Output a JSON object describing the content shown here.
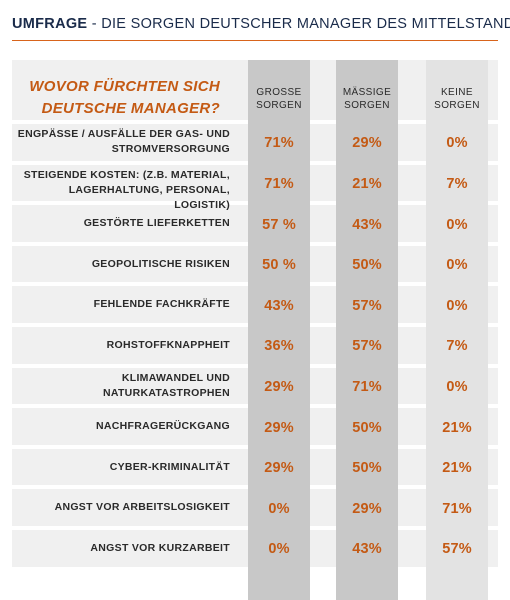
{
  "title": {
    "label": "UMFRAGE",
    "text": " - DIE SORGEN DEUTSCHER MANAGER DES MITTELSTANDS"
  },
  "colors": {
    "accent": "#c45a14",
    "title": "#1a2b4a",
    "band": "#f0f0f0",
    "column_dark": "#c8c8c8",
    "column_light": "#e3e3e3"
  },
  "chart_data": {
    "type": "table",
    "title": "WOVOR FÜRCHTEN SICH DEUTSCHE MANAGER?",
    "columns": [
      {
        "line1": "GROSSE",
        "line2": "SORGEN"
      },
      {
        "line1": "MÄSSIGE",
        "line2": "SORGEN"
      },
      {
        "line1": "KEINE",
        "line2": "SORGEN"
      }
    ],
    "rows": [
      {
        "label": [
          "ENGPÄSSE / AUSFÄLLE DER GAS- UND",
          "STROMVERSORGUNG"
        ],
        "values": [
          "71%",
          "29%",
          "0%"
        ]
      },
      {
        "label": [
          "STEIGENDE KOSTEN: (Z.B. MATERIAL,",
          "LAGERHALTUNG, PERSONAL, LOGISTIK)"
        ],
        "values": [
          "71%",
          "21%",
          "7%"
        ]
      },
      {
        "label": [
          "GESTÖRTE LIEFERKETTEN"
        ],
        "values": [
          "57 %",
          "43%",
          "0%"
        ]
      },
      {
        "label": [
          "GEOPOLITISCHE RISIKEN"
        ],
        "values": [
          "50 %",
          "50%",
          "0%"
        ]
      },
      {
        "label": [
          "FEHLENDE FACHKRÄFTE"
        ],
        "values": [
          "43%",
          "57%",
          "0%"
        ]
      },
      {
        "label": [
          "ROHSTOFFKNAPPHEIT"
        ],
        "values": [
          "36%",
          "57%",
          "7%"
        ]
      },
      {
        "label": [
          "KLIMAWANDEL UND",
          "NATURKATASTROPHEN"
        ],
        "values": [
          "29%",
          "71%",
          "0%"
        ]
      },
      {
        "label": [
          "NACHFRAGERÜCKGANG"
        ],
        "values": [
          "29%",
          "50%",
          "21%"
        ]
      },
      {
        "label": [
          "CYBER-KRIMINALITÄT"
        ],
        "values": [
          "29%",
          "50%",
          "21%"
        ]
      },
      {
        "label": [
          "ANGST VOR ARBEITSLOSIGKEIT"
        ],
        "values": [
          "0%",
          "29%",
          "71%"
        ]
      },
      {
        "label": [
          "ANGST VOR KURZARBEIT"
        ],
        "values": [
          "0%",
          "43%",
          "57%"
        ]
      }
    ]
  }
}
